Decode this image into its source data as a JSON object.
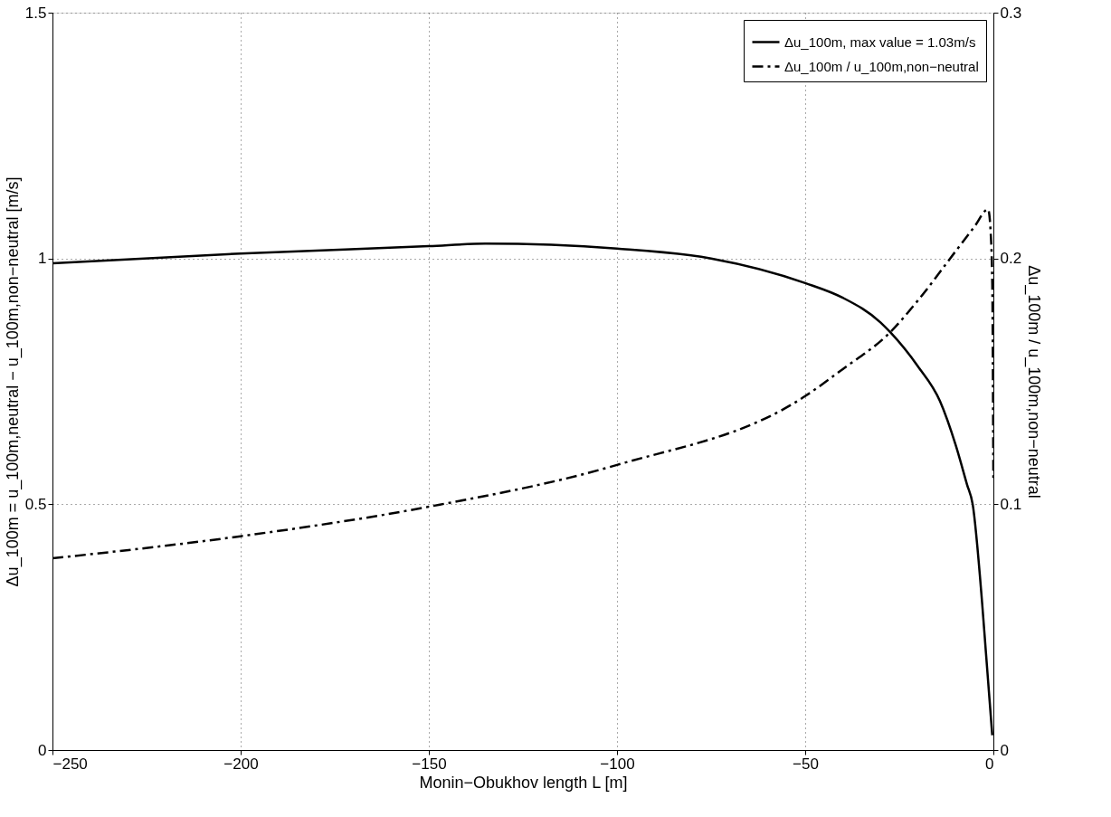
{
  "chart_data": {
    "type": "line",
    "xlabel": "Monin−Obukhov length L [m]",
    "ylabel": "Δu_100m = u_100m,neutral − u_100m,non−neutral [m/s]",
    "y2label": "Δu_100m / u_100m,non−neutral",
    "xlim": [
      -250,
      0
    ],
    "xticks": [
      -250,
      -200,
      -150,
      -100,
      -50,
      0
    ],
    "ylim": [
      0,
      1.5
    ],
    "yticks": [
      0,
      0.5,
      1,
      1.5
    ],
    "y2lim": [
      0,
      0.3
    ],
    "y2ticks": [
      0,
      0.1,
      0.2,
      0.3
    ],
    "grid": true,
    "legend": "top right",
    "marker": "none",
    "series": [
      {
        "name": "Δu_100m, max value = 1.03m/s",
        "color": "#000000",
        "line_style": "solid",
        "x": [
          -250,
          -200,
          -150,
          -135,
          -100,
          -75,
          -50,
          -40,
          -30,
          -27.4,
          -20,
          -14.2,
          -10,
          -7,
          -5.5,
          -3,
          -2,
          -1,
          -0.3
        ],
        "values": [
          0.99,
          1.01,
          1.025,
          1.03,
          1.02,
          1.0,
          0.95,
          0.92,
          0.87,
          0.85,
          0.78,
          0.71,
          0.62,
          0.54,
          0.5,
          0.3,
          0.2,
          0.1,
          0.03
        ]
      },
      {
        "name": "Δu_100m / u_100m,non−neutral",
        "color": "#000000",
        "line_style": "dashed",
        "axis": "y2",
        "x": [
          -250,
          -200,
          -150,
          -100,
          -50,
          -40,
          -27.4,
          -20,
          -10,
          -5,
          -1.4,
          -0.7,
          -0.3,
          0
        ],
        "values": [
          0.078,
          0.087,
          0.099,
          0.116,
          0.144,
          0.155,
          0.17,
          0.183,
          0.203,
          0.213,
          0.22,
          0.21,
          0.19,
          0.11
        ]
      }
    ]
  }
}
